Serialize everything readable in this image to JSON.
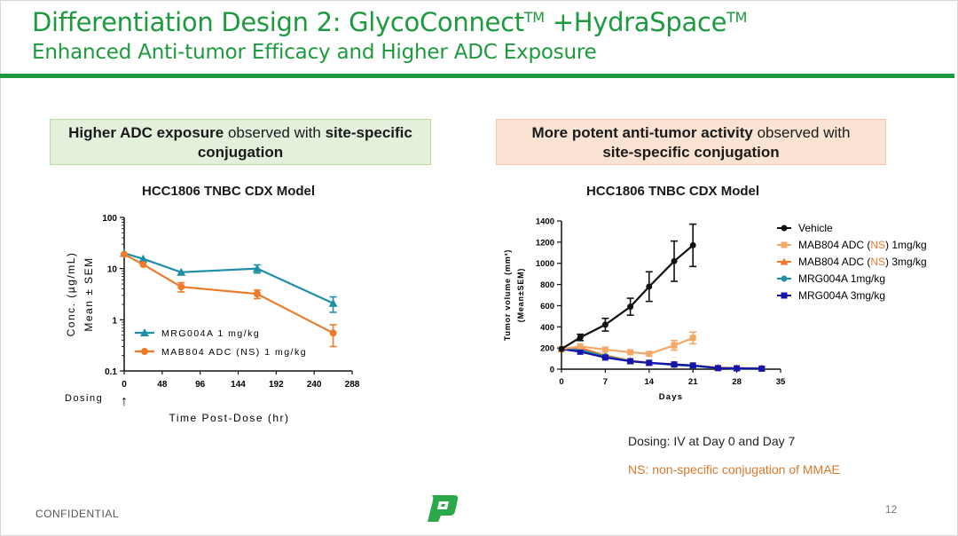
{
  "slide": {
    "title_main": "Differentiation Design 2: GlycoConnect",
    "tm1": "TM",
    "title_mid": " +HydraSpace",
    "tm2": "TM",
    "subtitle": "Enhanced Anti-tumor Efficacy and Higher ADC Exposure",
    "footer_left": "CONFIDENTIAL",
    "page_number": "12",
    "accent_color": "#1d9a3e"
  },
  "callout_left": {
    "bold1": "Higher ADC exposure",
    "text1": " observed with ",
    "bold2": "site-specific conjugation"
  },
  "callout_right": {
    "bold1": "More potent anti-tumor activity",
    "text1": " observed with ",
    "bold2": "site-specific conjugation"
  },
  "notes": {
    "dosing": "Dosing: IV at Day 0 and Day 7",
    "ns_note": "NS: non-specific conjugation of MMAE"
  },
  "chart_data": [
    {
      "type": "line",
      "title": "HCC1806 TNBC CDX Model",
      "xlabel": "Time Post-Dose (hr)",
      "ylabel_line1": "Conc. (µg/mL)",
      "ylabel_line2": "Mean ± SEM",
      "yscale": "log",
      "ylim": [
        0.1,
        100
      ],
      "xlim": [
        0,
        288
      ],
      "xticks": [
        0,
        48,
        96,
        144,
        192,
        240,
        288
      ],
      "yticks": [
        0.1,
        1,
        10,
        100
      ],
      "ytick_labels": [
        "0.1",
        "1",
        "10",
        "100"
      ],
      "dosing_label": "Dosing",
      "dosing_arrow": "↑",
      "legend_position": "bottom-left",
      "series": [
        {
          "name": "MRG004A 1 mg/kg",
          "color": "#1f8fa8",
          "marker": "triangle",
          "x": [
            0,
            24,
            72,
            168,
            264
          ],
          "y": [
            20,
            15.5,
            8.5,
            10,
            2.1
          ],
          "err": [
            0,
            0,
            0,
            1.8,
            0.7
          ]
        },
        {
          "name": "MAB804 ADC (NS) 1 mg/kg",
          "color": "#ee7a2a",
          "marker": "circle",
          "x": [
            0,
            24,
            72,
            168,
            264
          ],
          "y": [
            19,
            12,
            4.4,
            3.2,
            0.55
          ],
          "err": [
            0,
            0,
            0.9,
            0.6,
            0.25
          ]
        }
      ]
    },
    {
      "type": "line",
      "title": "HCC1806 TNBC CDX Model",
      "xlabel": "Days",
      "ylabel_line1": "Tumor volume (mm³)",
      "ylabel_line2": "(Mean±SEM)",
      "ylim": [
        0,
        1400
      ],
      "xlim": [
        0,
        35
      ],
      "xticks": [
        0,
        7,
        14,
        21,
        28,
        35
      ],
      "yticks": [
        0,
        200,
        400,
        600,
        800,
        1000,
        1200,
        1400
      ],
      "legend_position": "right",
      "series": [
        {
          "name": "Vehicle",
          "color": "#111111",
          "marker": "circle",
          "x": [
            0,
            3,
            7,
            11,
            14,
            18,
            21
          ],
          "y": [
            190,
            300,
            420,
            590,
            780,
            1020,
            1170
          ],
          "err": [
            0,
            30,
            60,
            80,
            140,
            190,
            200
          ]
        },
        {
          "name": "MAB804 ADC (NS) 1mg/kg",
          "name_parts": [
            "MAB804 ADC (",
            "NS",
            ") 1mg/kg"
          ],
          "color": "#f4a868",
          "marker": "square",
          "x": [
            0,
            3,
            7,
            11,
            14,
            18,
            21
          ],
          "y": [
            190,
            215,
            185,
            160,
            145,
            225,
            295
          ],
          "err": [
            0,
            0,
            0,
            0,
            0,
            45,
            55
          ]
        },
        {
          "name": "MAB804 ADC (NS) 3mg/kg",
          "name_parts": [
            "MAB804 ADC (",
            "NS",
            ") 3mg/kg"
          ],
          "color": "#ee7a2a",
          "marker": "triangle",
          "x": [
            0,
            3,
            7,
            11,
            14,
            18,
            21,
            25,
            28,
            32
          ],
          "y": [
            190,
            200,
            130,
            80,
            60,
            45,
            35,
            15,
            10,
            10
          ],
          "err": [
            0,
            0,
            0,
            0,
            0,
            0,
            0,
            0,
            0,
            0
          ]
        },
        {
          "name": "MRG004A 1mg/kg",
          "color": "#1f8fa8",
          "marker": "circle",
          "x": [
            0,
            3,
            7,
            11,
            14,
            18,
            21,
            25,
            28,
            32
          ],
          "y": [
            190,
            180,
            120,
            75,
            60,
            40,
            30,
            10,
            5,
            5
          ],
          "err": [
            0,
            0,
            0,
            0,
            0,
            0,
            0,
            0,
            0,
            0
          ]
        },
        {
          "name": "MRG004A 3mg/kg",
          "color": "#1515aa",
          "marker": "square",
          "x": [
            0,
            3,
            7,
            11,
            14,
            18,
            21,
            25,
            28,
            32
          ],
          "y": [
            190,
            165,
            110,
            75,
            60,
            45,
            35,
            10,
            8,
            5
          ],
          "err": [
            0,
            0,
            0,
            0,
            0,
            0,
            0,
            0,
            0,
            0
          ]
        }
      ]
    }
  ]
}
